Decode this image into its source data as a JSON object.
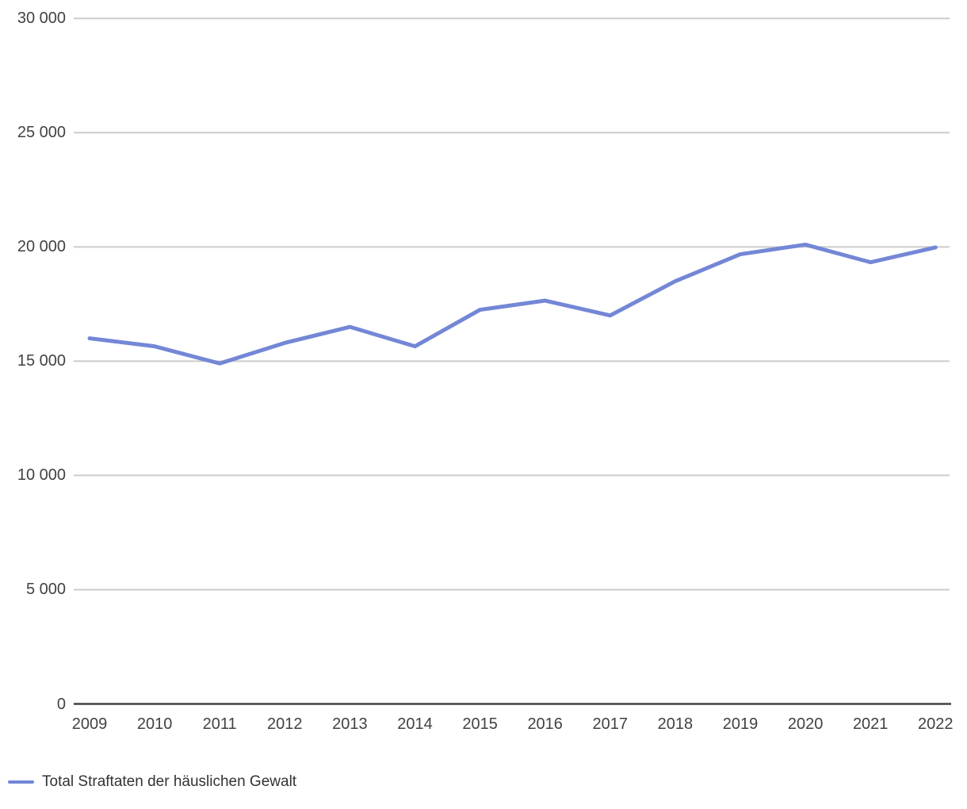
{
  "chart_data": {
    "type": "line",
    "title": "",
    "x": [
      "2009",
      "2010",
      "2011",
      "2012",
      "2013",
      "2014",
      "2015",
      "2016",
      "2017",
      "2018",
      "2019",
      "2020",
      "2021",
      "2022"
    ],
    "series": [
      {
        "name": "Total Straftaten der häuslichen Gewalt",
        "color": "#7487d6",
        "values": [
          16000,
          15650,
          14900,
          15800,
          16500,
          15650,
          17250,
          17650,
          17000,
          18500,
          19680,
          20100,
          19330,
          19980
        ]
      }
    ],
    "xlabel": "",
    "ylabel": "",
    "ylim": [
      0,
      30000
    ],
    "y_tick_step": 5000,
    "y_tick_values": [
      0,
      5000,
      10000,
      15000,
      20000,
      25000,
      30000
    ],
    "y_tick_labels": [
      "0",
      "5 000",
      "10 000",
      "15 000",
      "20 000",
      "25 000",
      "30 000"
    ],
    "grid": true,
    "legend_position": "bottom-left"
  },
  "legend": {
    "label": "Total Straftaten der häuslichen Gewalt"
  },
  "colors": {
    "line": "#7487d6",
    "gridline": "#cccccc",
    "axis_line": "#424242",
    "tick_text": "#424242",
    "legend_text": "#333333",
    "background": "#ffffff"
  }
}
